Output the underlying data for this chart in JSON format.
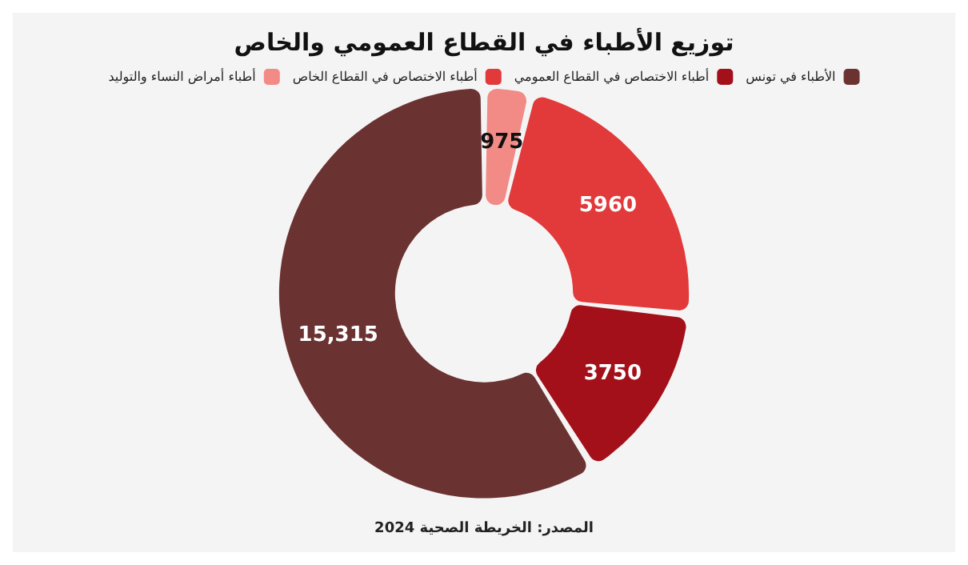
{
  "chart_data": {
    "type": "donut",
    "title": "توزيع الأطباء في القطاع العمومي والخاص",
    "categories": [
      "الأطباء في تونس",
      "أطباء الاختصاص في القطاع العمومي",
      "أطباء الاختصاص في القطاع الخاص",
      "أطباء أمراض النساء والتوليد"
    ],
    "values": [
      15315,
      3750,
      5960,
      975
    ],
    "colors": [
      "#6b3232",
      "#a3101a",
      "#e2393a",
      "#f28a86"
    ],
    "value_labels": [
      "15,315",
      "3750",
      "5960",
      "975"
    ],
    "legend": "top",
    "annotations": [
      "المصدر: الخريطة الصحية 2024"
    ]
  }
}
